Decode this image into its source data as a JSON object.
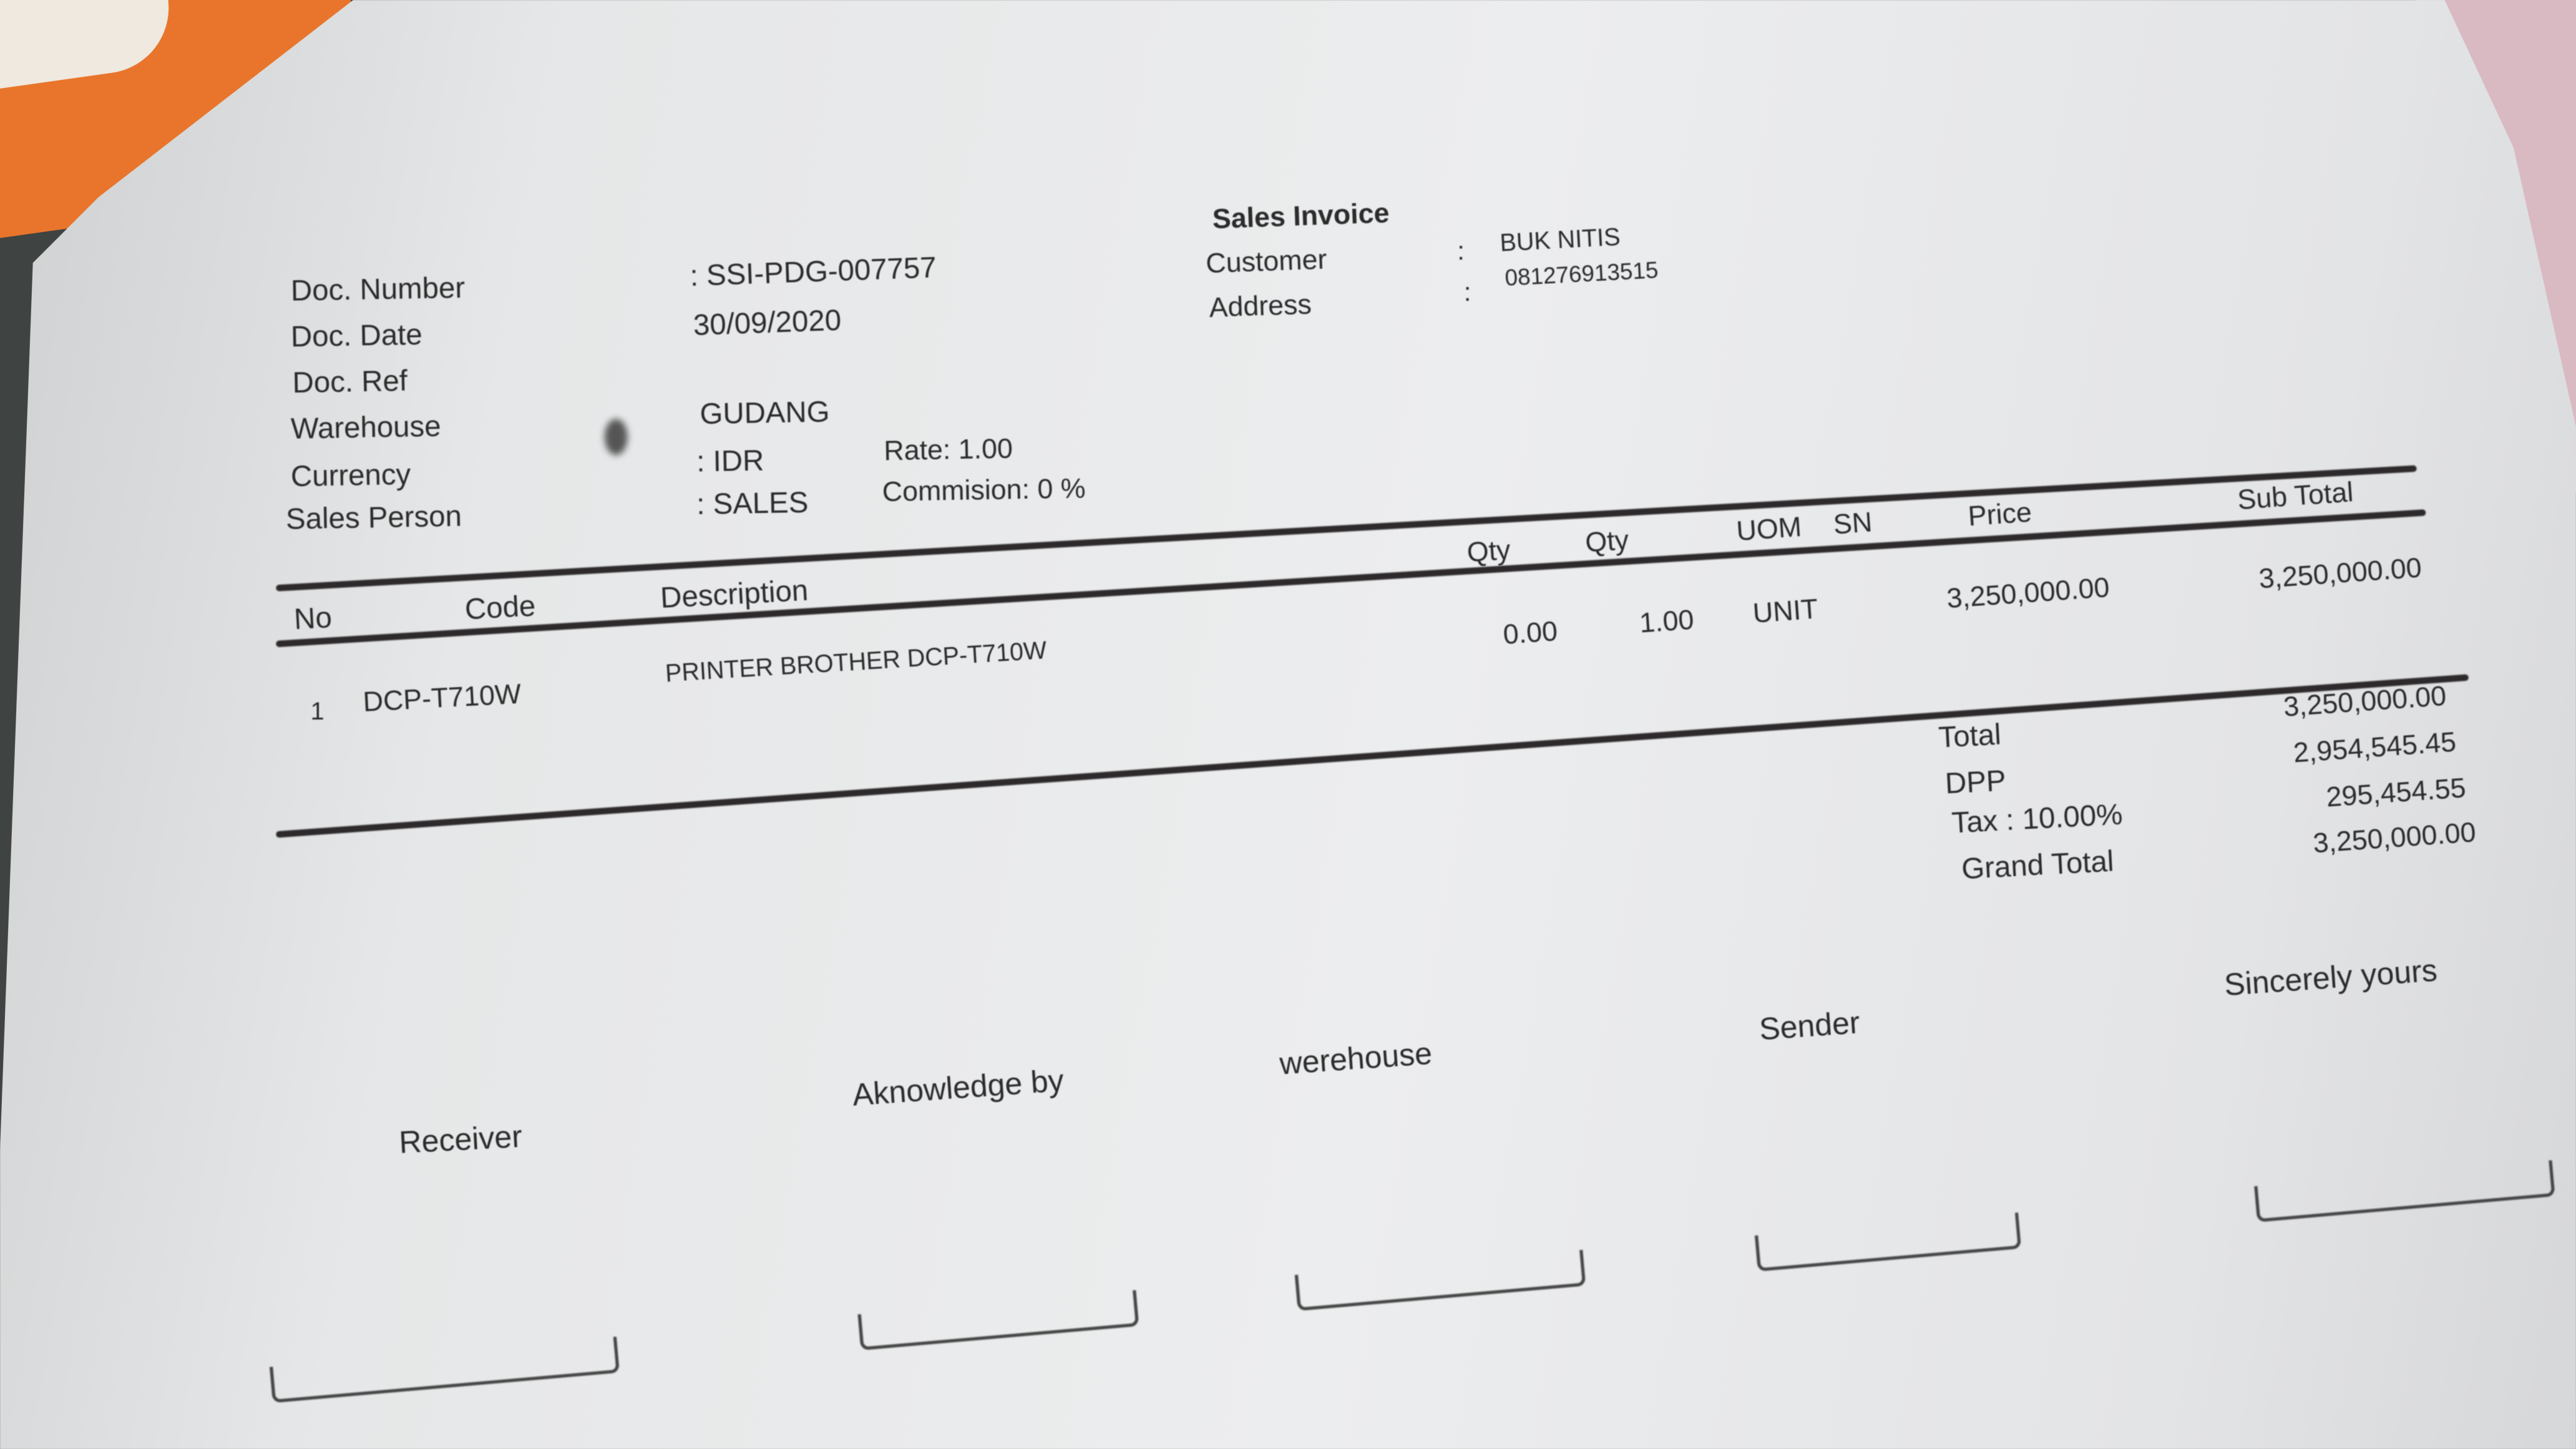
{
  "document": {
    "title": "Sales Invoice",
    "fields_left": [
      {
        "label": "Doc. Number",
        "value": ": SSI-PDG-007757"
      },
      {
        "label": "Doc. Date",
        "value": "30/09/2020"
      },
      {
        "label": "Doc. Ref",
        "value": ""
      },
      {
        "label": "Warehouse",
        "value": "GUDANG"
      },
      {
        "label": "Currency",
        "value": ": IDR",
        "extra": "Rate: 1.00"
      },
      {
        "label": "Sales Person",
        "value": ": SALES",
        "extra": "Commision: 0 %"
      }
    ],
    "fields_right": [
      {
        "label": "Customer",
        "colon": ":",
        "value": "BUK NITIS"
      },
      {
        "label": "Address",
        "colon": ":",
        "value": "081276913515"
      }
    ],
    "table": {
      "headers": [
        "No",
        "Code",
        "Description",
        "Qty",
        "Qty",
        "UOM",
        "SN",
        "Price",
        "Sub Total"
      ],
      "rows": [
        {
          "no": "1",
          "code": "DCP-T710W",
          "description": "PRINTER BROTHER DCP-T710W",
          "qty1": "0.00",
          "qty2": "1.00",
          "uom": "UNIT",
          "sn": "",
          "price": "3,250,000.00",
          "subtotal": "3,250,000.00"
        }
      ]
    },
    "totals": [
      {
        "label": "Total",
        "value": "3,250,000.00"
      },
      {
        "label": "DPP",
        "value": "2,954,545.45"
      },
      {
        "label": "Tax : 10.00%",
        "value": "295,454.55"
      },
      {
        "label": "Grand Total",
        "value": "3,250,000.00"
      }
    ],
    "signatures": [
      "Receiver",
      "Aknowledge by",
      "werehouse",
      "Sender",
      "Sincerely yours"
    ]
  },
  "colors": {
    "ink": "#2b2b2c",
    "paper": "#e8e9ea",
    "background": "#3f4341",
    "folder": "#e8752b"
  }
}
